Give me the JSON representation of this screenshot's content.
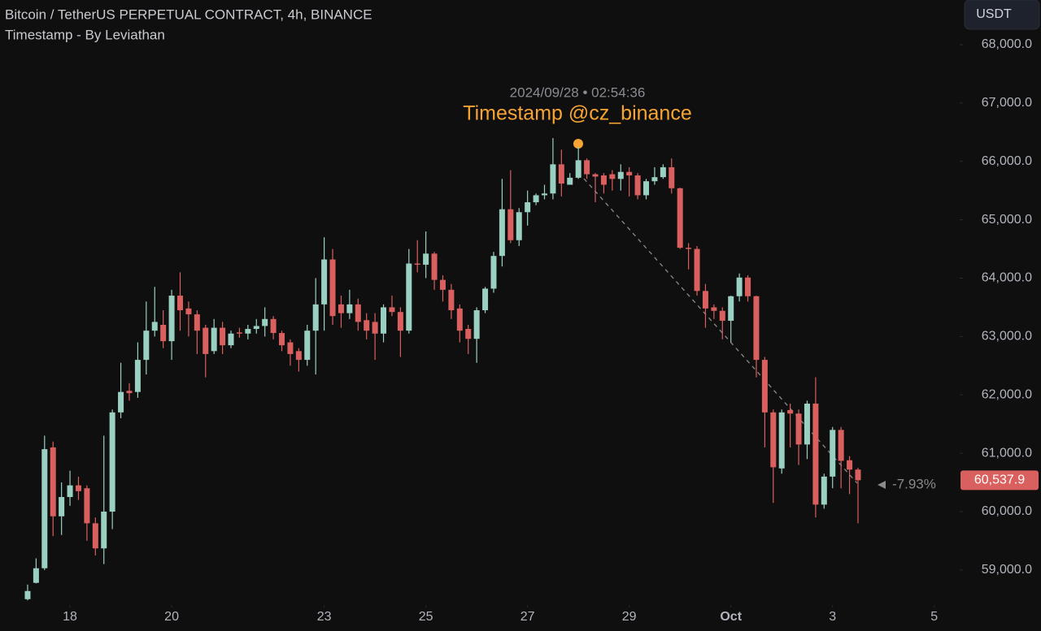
{
  "chart_data": {
    "type": "candlestick",
    "title": "Bitcoin / TetherUS PERPETUAL CONTRACT, 4h, BINANCE",
    "subtitle": "Timestamp - By Leviathan",
    "currency": "USDT",
    "annotation": {
      "time": "2024/09/28 • 02:54:36",
      "text": "Timestamp @cz_binance"
    },
    "change_label": "-7.93%",
    "price_tag": {
      "value": 60537.9,
      "label": "60,537.9"
    },
    "up_color": "#9ad0c2",
    "down_color": "#d9605f",
    "open": [
      58500,
      58780,
      59030,
      61100,
      59920,
      60250,
      60450,
      60400,
      59800,
      59370,
      60000,
      61700,
      62070,
      62050,
      62600,
      63100,
      63200,
      62920,
      63700,
      63480,
      63380,
      63150,
      62750,
      63150,
      62850,
      63070,
      63050,
      63130,
      63180,
      63300,
      63060,
      62900,
      62750,
      62600,
      63100,
      63550,
      64320,
      63550,
      63400,
      63550,
      63280,
      63250,
      63050,
      63500,
      63420,
      63100,
      64250,
      64230,
      64420,
      63970,
      63800,
      63480,
      63130,
      62960,
      63450,
      63820,
      64380,
      65180,
      64650,
      65130,
      65300,
      65420,
      65450,
      65950,
      65600,
      65720,
      66020,
      65780,
      65760,
      65780,
      65700,
      65820,
      65760,
      65420,
      65660,
      65730,
      65900,
      65540,
      64520,
      64500,
      63780,
      63500,
      63440,
      63270,
      63690,
      64010,
      63690,
      62600,
      61700,
      60740,
      61740,
      61680,
      61150,
      61850,
      60120,
      60600,
      61400,
      60880,
      60720
    ],
    "high": [
      58750,
      59200,
      61300,
      61200,
      60500,
      60700,
      60600,
      60450,
      59900,
      61300,
      61750,
      62550,
      62200,
      62900,
      63600,
      63850,
      63450,
      63800,
      64100,
      63600,
      63450,
      63200,
      63300,
      63250,
      63100,
      63150,
      63200,
      63300,
      63500,
      63350,
      63100,
      62950,
      62800,
      63200,
      64000,
      64700,
      64500,
      63700,
      63800,
      63650,
      63400,
      63400,
      63550,
      63700,
      63500,
      64500,
      64650,
      64800,
      64450,
      64050,
      63900,
      63550,
      63200,
      63500,
      63850,
      64450,
      65700,
      65850,
      65200,
      65500,
      65450,
      65600,
      66400,
      66200,
      65800,
      66250,
      66050,
      65800,
      65800,
      65850,
      65950,
      65900,
      65800,
      65700,
      65900,
      65950,
      66050,
      65550,
      64600,
      64550,
      63900,
      63550,
      63500,
      63700,
      64080,
      64050,
      63700,
      62650,
      61750,
      61750,
      61850,
      61750,
      61900,
      62300,
      60650,
      61450,
      61450,
      60950,
      60750
    ],
    "low": [
      58480,
      58770,
      59000,
      59580,
      59600,
      60100,
      60200,
      59500,
      59250,
      59100,
      59700,
      61600,
      61900,
      61950,
      62350,
      63000,
      62800,
      62600,
      63100,
      63000,
      62700,
      62300,
      62700,
      62700,
      62800,
      62980,
      62950,
      63050,
      63000,
      62950,
      62750,
      62500,
      62400,
      62500,
      62350,
      63100,
      63200,
      63150,
      63300,
      63100,
      62950,
      62600,
      62900,
      63350,
      62650,
      63050,
      64100,
      64000,
      63800,
      63600,
      63300,
      62900,
      62700,
      62550,
      63400,
      63750,
      64200,
      64600,
      64550,
      64900,
      65250,
      65350,
      65350,
      65400,
      65600,
      65700,
      65700,
      65300,
      65450,
      65500,
      65500,
      65400,
      65350,
      65350,
      65600,
      65700,
      65450,
      64500,
      64150,
      63700,
      63150,
      63300,
      62950,
      62900,
      63600,
      63600,
      62300,
      61100,
      60150,
      60650,
      61100,
      60800,
      60900,
      59900,
      60050,
      60400,
      60400,
      60300,
      59800
    ],
    "close": [
      58640,
      59030,
      61070,
      59920,
      60250,
      60450,
      60350,
      59800,
      59370,
      60000,
      61700,
      62050,
      62030,
      62600,
      63100,
      63250,
      62920,
      63700,
      63450,
      63380,
      63100,
      62700,
      63150,
      62850,
      63050,
      63050,
      63130,
      63180,
      63300,
      63060,
      62850,
      62700,
      62600,
      63100,
      63550,
      64320,
      63350,
      63400,
      63550,
      63250,
      63100,
      63050,
      63500,
      63420,
      63100,
      64250,
      64230,
      64420,
      63970,
      63800,
      63450,
      63100,
      62960,
      63450,
      63820,
      64380,
      65180,
      64650,
      65130,
      65300,
      65420,
      65450,
      65950,
      65620,
      65720,
      66020,
      65780,
      65740,
      65600,
      65700,
      65820,
      65760,
      65420,
      65660,
      65730,
      65900,
      65540,
      64520,
      64500,
      63780,
      63480,
      63440,
      63270,
      63690,
      64010,
      63690,
      62600,
      61700,
      60760,
      61700,
      61680,
      61150,
      61850,
      60120,
      60600,
      61400,
      60870,
      60720,
      60537.9
    ],
    "xlim": [
      -3.26,
      110
    ],
    "xticks": [
      {
        "value": 5,
        "label": "18"
      },
      {
        "value": 17,
        "label": "20"
      },
      {
        "value": 35,
        "label": "23"
      },
      {
        "value": 47,
        "label": "25"
      },
      {
        "value": 59,
        "label": "27"
      },
      {
        "value": 71,
        "label": "29"
      },
      {
        "value": 83,
        "label": "Oct"
      },
      {
        "value": 95,
        "label": "3"
      },
      {
        "value": 107,
        "label": "5"
      }
    ],
    "ylim": [
      58400,
      68765
    ],
    "yticks": [
      {
        "value": 59000,
        "label": "59,000.0"
      },
      {
        "value": 60000,
        "label": "60,000.0"
      },
      {
        "value": 61000,
        "label": "61,000.0"
      },
      {
        "value": 62000,
        "label": "62,000.0"
      },
      {
        "value": 63000,
        "label": "63,000.0"
      },
      {
        "value": 64000,
        "label": "64,000.0"
      },
      {
        "value": 65000,
        "label": "65,000.0"
      },
      {
        "value": 66000,
        "label": "66,000.0"
      },
      {
        "value": 67000,
        "label": "67,000.0"
      },
      {
        "value": 68000,
        "label": "68,000.0"
      }
    ]
  }
}
